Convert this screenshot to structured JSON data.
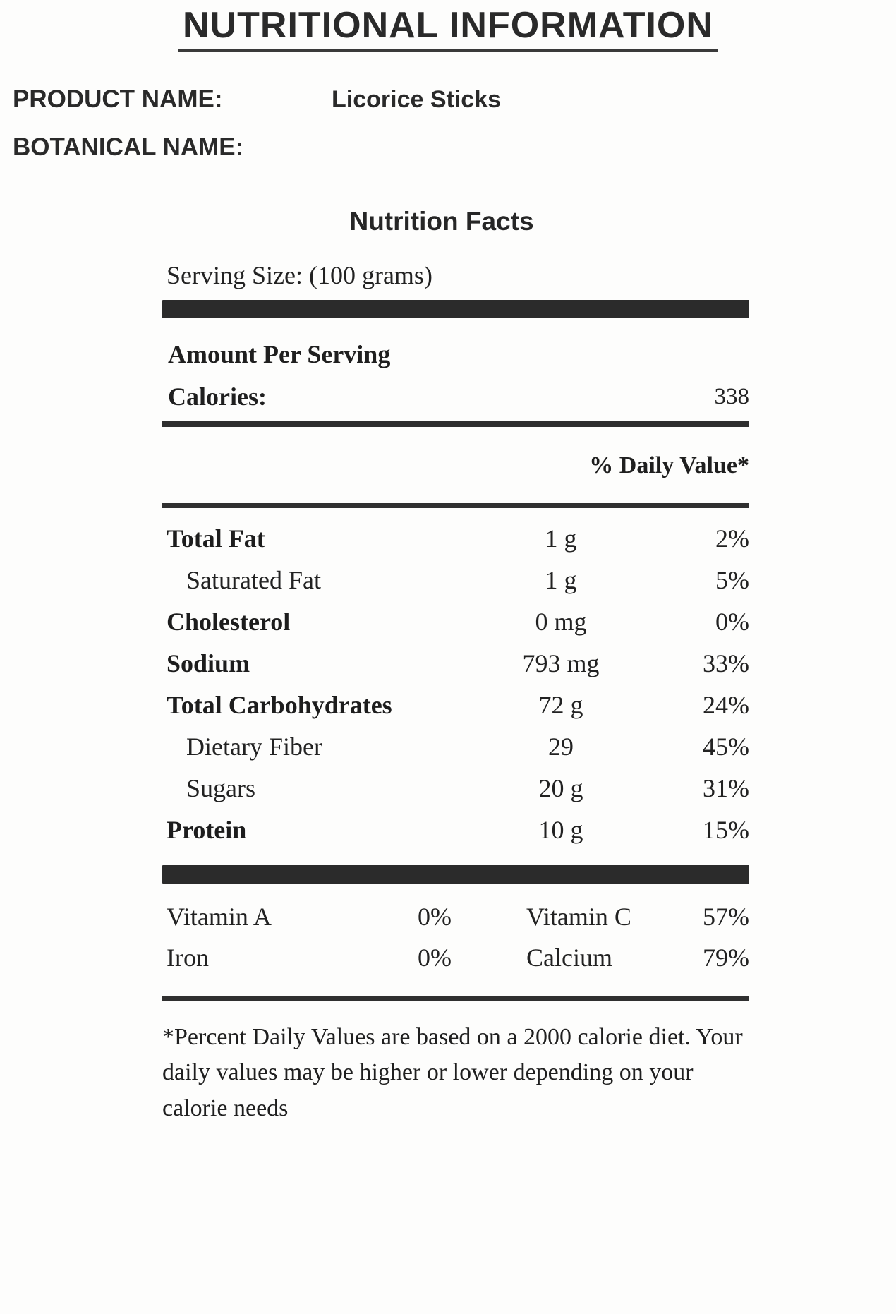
{
  "header": {
    "title": "NUTRITIONAL INFORMATION",
    "product_name_label": "PRODUCT NAME:",
    "product_name_value": "Licorice Sticks",
    "botanical_name_label": "BOTANICAL NAME:"
  },
  "nutrition": {
    "heading": "Nutrition Facts",
    "serving_size": "Serving Size: (100 grams)",
    "amount_per_serving": "Amount Per Serving",
    "calories_label": "Calories:",
    "calories_value": "338",
    "daily_value_header": "% Daily Value*",
    "rows": [
      {
        "label": "Total Fat",
        "amount": "1 g",
        "dv": "2%"
      },
      {
        "label": "Saturated Fat",
        "amount": "1 g",
        "dv": "5%"
      },
      {
        "label": "Cholesterol",
        "amount": "0 mg",
        "dv": "0%"
      },
      {
        "label": "Sodium",
        "amount": "793 mg",
        "dv": "33%"
      },
      {
        "label": "Total Carbohydrates",
        "amount": "72 g",
        "dv": "24%"
      },
      {
        "label": "Dietary Fiber",
        "amount": "29",
        "dv": "45%"
      },
      {
        "label": "Sugars",
        "amount": "20 g",
        "dv": "31%"
      },
      {
        "label": "Protein",
        "amount": "10 g",
        "dv": "15%"
      }
    ],
    "vitamins": [
      {
        "label": "Vitamin A",
        "value": "0%",
        "label2": "Vitamin C",
        "value2": "57%"
      },
      {
        "label": "Iron",
        "value": "0%",
        "label2": "Calcium",
        "value2": "79%"
      }
    ],
    "footnote": "*Percent Daily Values are based on a 2000 calorie diet. Your daily values may be higher or lower depending on your calorie needs"
  }
}
